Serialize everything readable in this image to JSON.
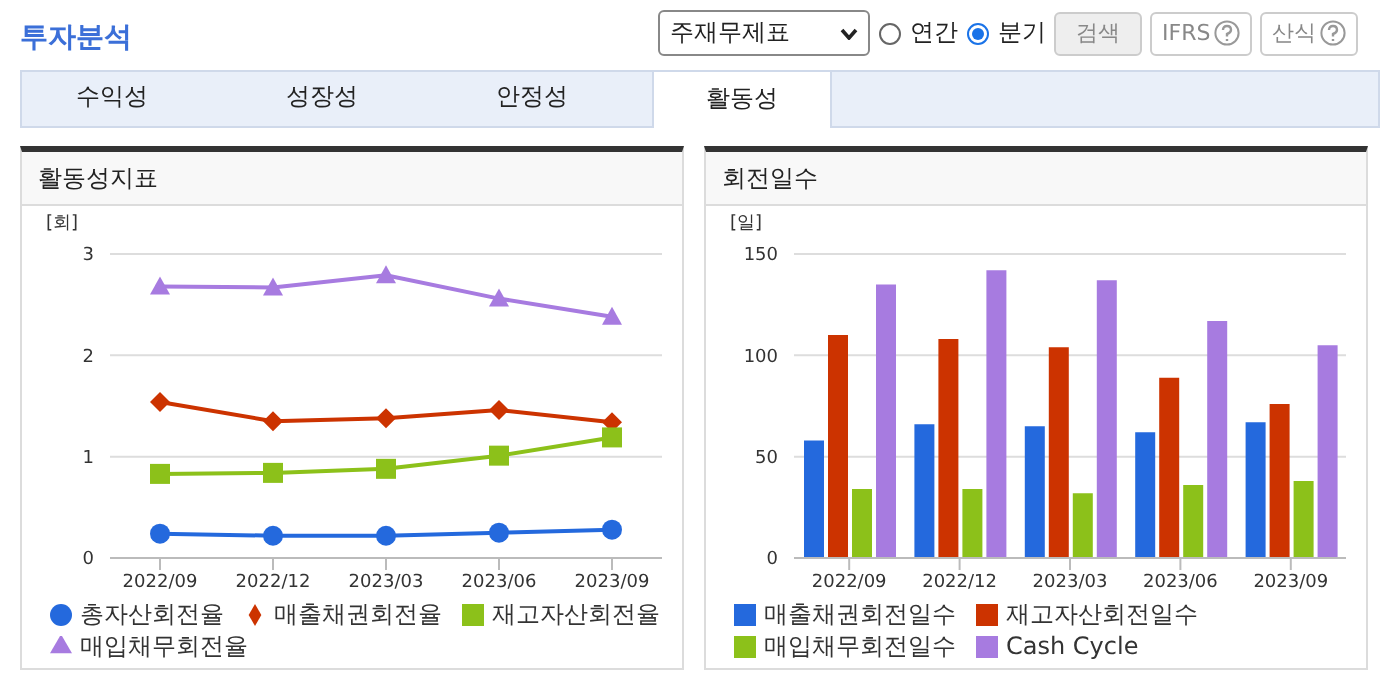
{
  "chart_data": [
    {
      "type": "line",
      "title": "활동성지표",
      "ylabel": "[회]",
      "categories": [
        "2022/09",
        "2022/12",
        "2023/03",
        "2023/06",
        "2023/09"
      ],
      "series": [
        {
          "name": "총자산회전율",
          "color": "#2469dd",
          "marker": "circle",
          "values": [
            0.24,
            0.22,
            0.22,
            0.25,
            0.28
          ]
        },
        {
          "name": "매출채권회전율",
          "color": "#cc3300",
          "marker": "diamond",
          "values": [
            1.54,
            1.35,
            1.38,
            1.46,
            1.34
          ]
        },
        {
          "name": "재고자산회전율",
          "color": "#8cc11a",
          "marker": "square",
          "values": [
            0.83,
            0.84,
            0.88,
            1.01,
            1.19
          ]
        },
        {
          "name": "매입채무회전율",
          "color": "#a77be0",
          "marker": "triangle",
          "values": [
            2.68,
            2.67,
            2.79,
            2.56,
            2.38
          ]
        }
      ],
      "ylim": [
        0,
        3
      ],
      "yticks": [
        0,
        1,
        2,
        3
      ],
      "grid": "y",
      "legend": "bottom",
      "annotations": [
        "투자분석",
        "주재무제표",
        "연간",
        "분기",
        "검색",
        "IFRS",
        "산식",
        "수익성",
        "성장성",
        "안정성",
        "활동성"
      ]
    },
    {
      "type": "bar",
      "title": "회전일수",
      "ylabel": "[일]",
      "categories": [
        "2022/09",
        "2022/12",
        "2023/03",
        "2023/06",
        "2023/09"
      ],
      "series": [
        {
          "name": "매출채권회전일수",
          "color": "#2469dd",
          "values": [
            58,
            66,
            65,
            62,
            67
          ]
        },
        {
          "name": "재고자산회전일수",
          "color": "#cc3300",
          "values": [
            110,
            108,
            104,
            89,
            76
          ]
        },
        {
          "name": "매입채무회전일수",
          "color": "#8cc11a",
          "values": [
            34,
            34,
            32,
            36,
            38
          ]
        },
        {
          "name": "Cash Cycle",
          "color": "#a77be0",
          "values": [
            135,
            142,
            137,
            117,
            105
          ]
        }
      ],
      "ylim": [
        0,
        150
      ],
      "yticks": [
        0,
        50,
        100,
        150
      ],
      "grid": "y",
      "legend": "bottom"
    }
  ]
}
